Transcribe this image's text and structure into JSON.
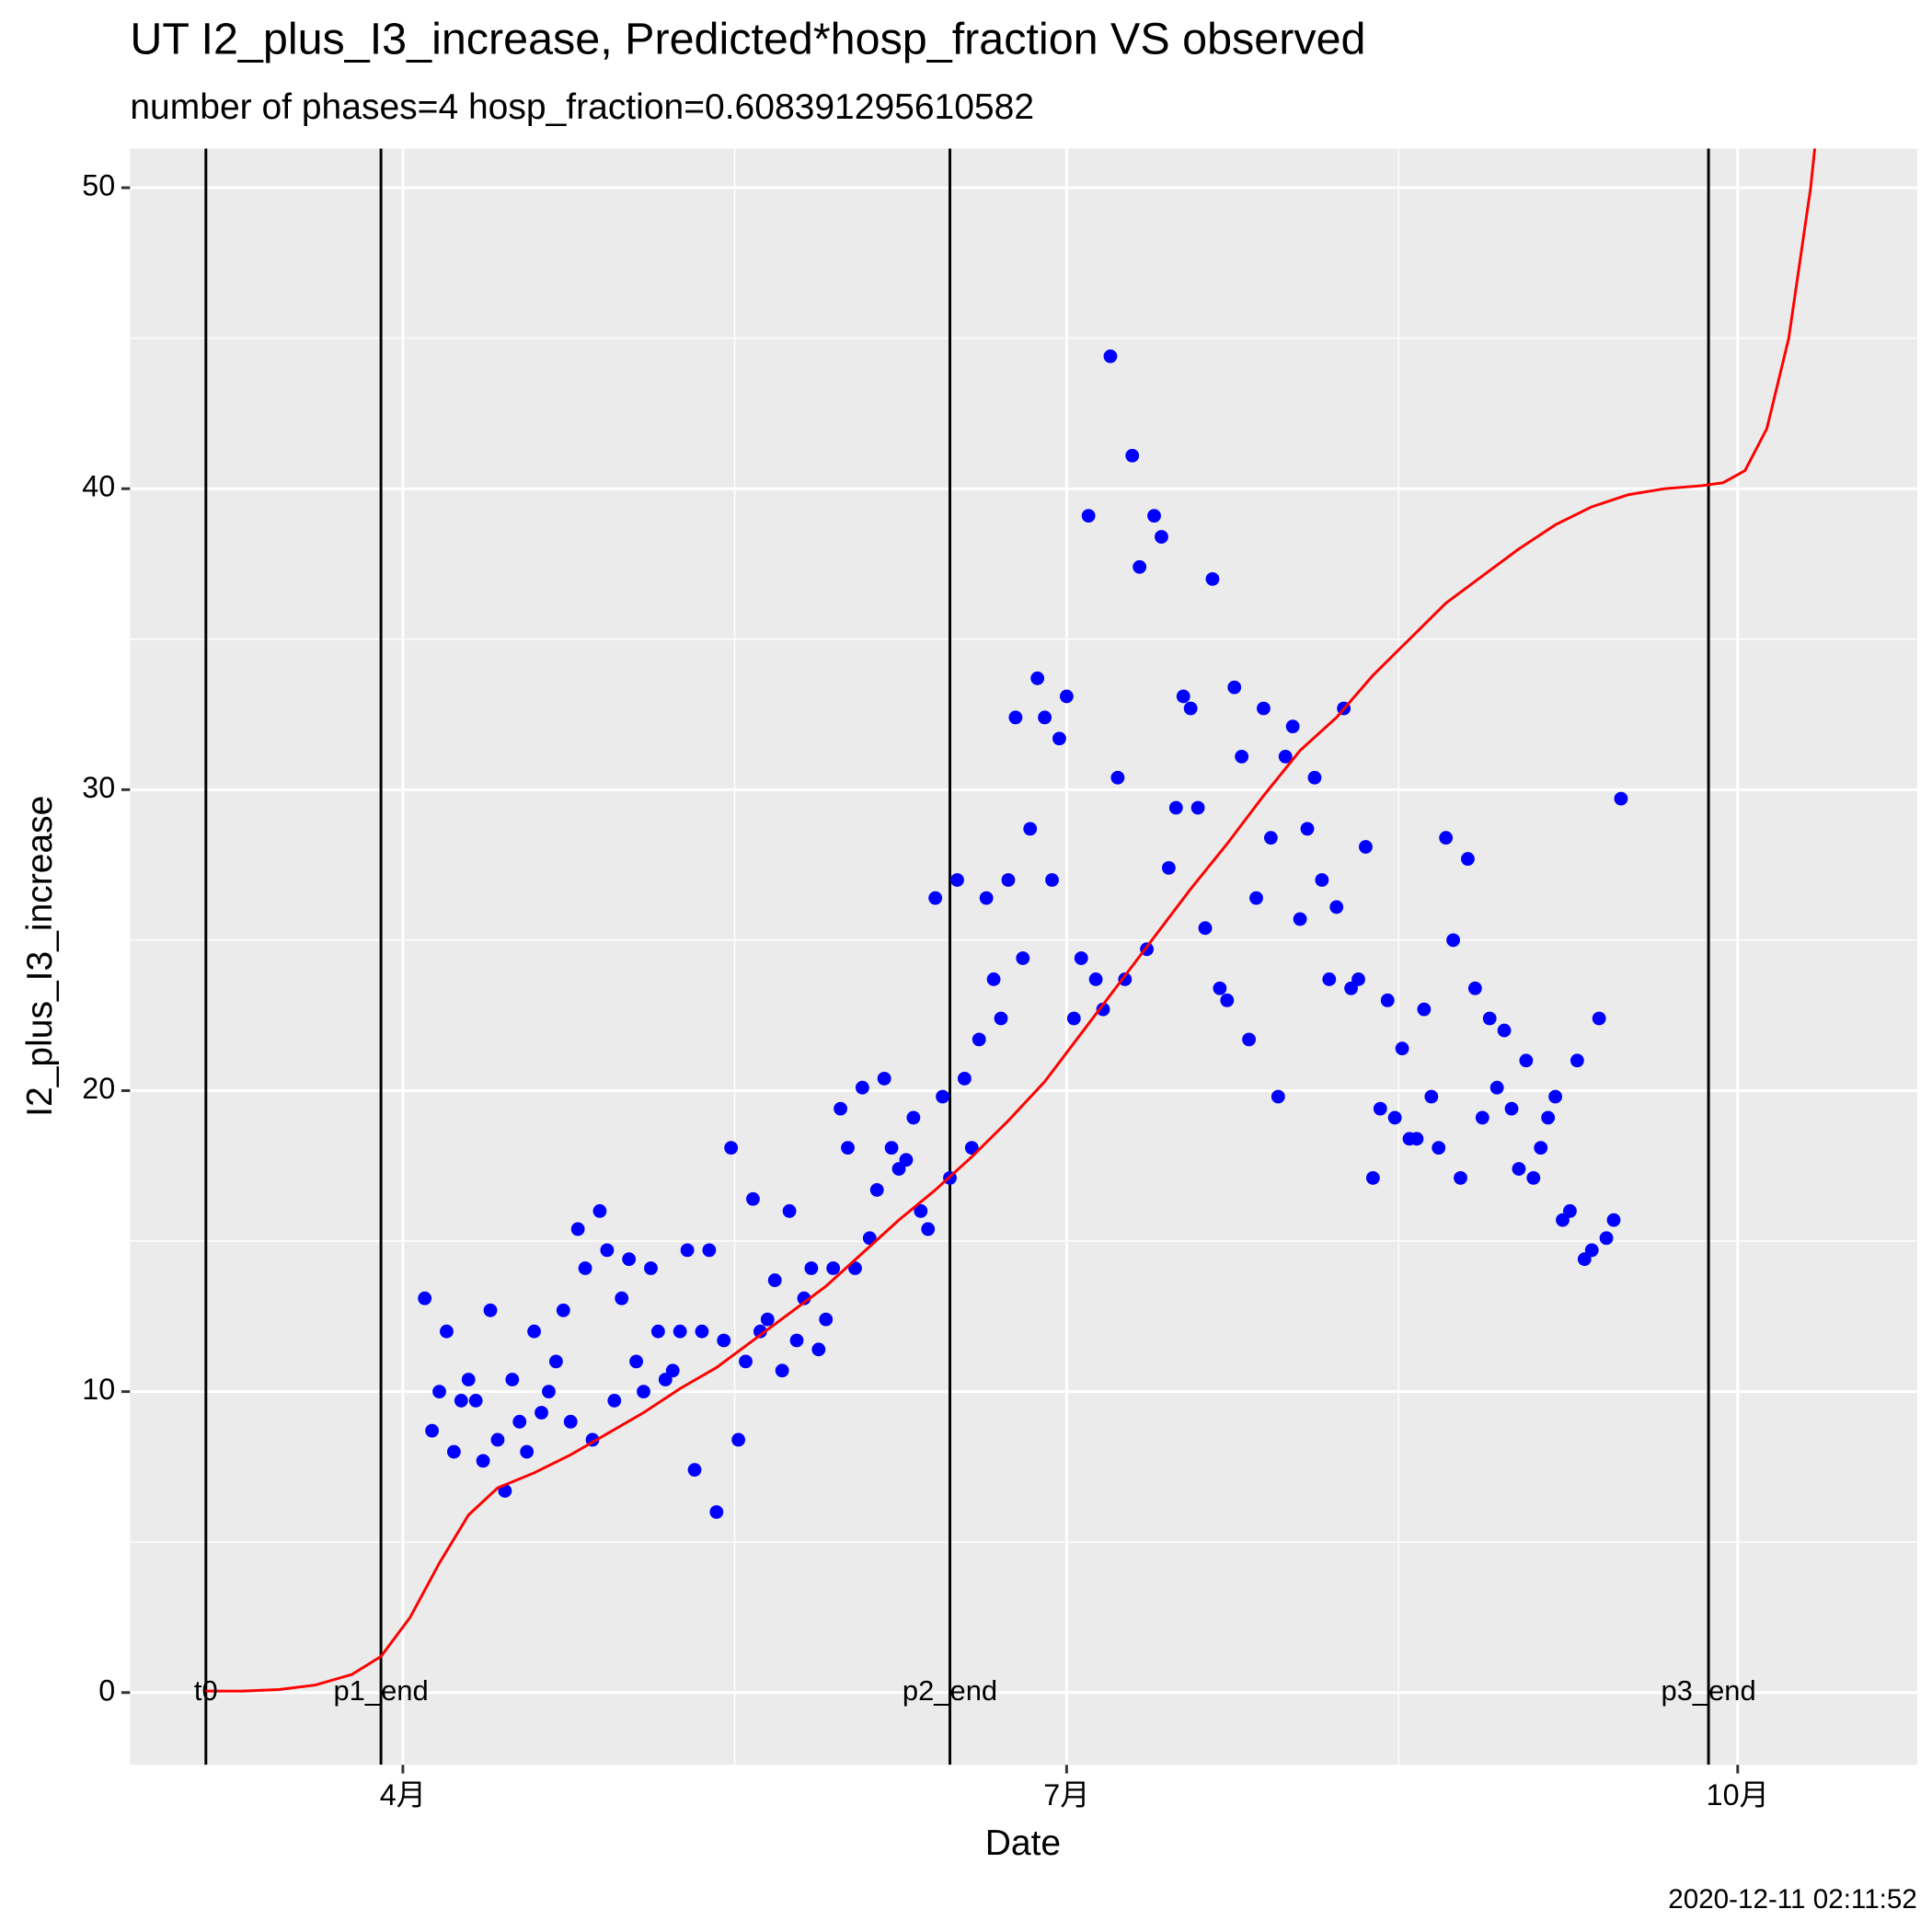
{
  "chart_data": {
    "type": "scatter",
    "title": "UT I2_plus_I3_increase, Predicted*hosp_fraction VS observed",
    "subtitle": "number of phases=4   hosp_fraction=0.608391295610582",
    "x_label": "Date",
    "y_label": "I2_plus_I3_increase",
    "caption": "2020-12-11 02:11:52",
    "grid": true,
    "xlim": [
      54.6,
      299.6
    ],
    "ylim": [
      -2.4,
      51.3
    ],
    "xticks": [
      {
        "value": 92,
        "label": "4月"
      },
      {
        "value": 183,
        "label": "7月"
      },
      {
        "value": 275,
        "label": "10月"
      }
    ],
    "yticks": [
      0,
      10,
      20,
      30,
      40,
      50
    ],
    "vlines": [
      {
        "x": 65,
        "label": "t0"
      },
      {
        "x": 89,
        "label": "p1_end"
      },
      {
        "x": 167,
        "label": "p2_end"
      },
      {
        "x": 271,
        "label": "p3_end"
      }
    ],
    "series": [
      {
        "type": "scatter",
        "color": "#0000ff",
        "x": [
          95,
          96,
          97,
          98,
          99,
          100,
          101,
          102,
          103,
          104,
          105,
          106,
          107,
          108,
          109,
          110,
          111,
          112,
          113,
          114,
          115,
          116,
          117,
          118,
          119,
          120,
          121,
          122,
          123,
          124,
          125,
          126,
          127,
          128,
          129,
          130,
          131,
          132,
          133,
          134,
          135,
          136,
          137,
          138,
          139,
          140,
          141,
          142,
          143,
          144,
          145,
          146,
          147,
          148,
          149,
          150,
          151,
          152,
          153,
          154,
          155,
          156,
          157,
          158,
          159,
          160,
          161,
          162,
          163,
          164,
          165,
          166,
          167,
          168,
          169,
          170,
          171,
          172,
          173,
          174,
          175,
          176,
          177,
          178,
          179,
          180,
          181,
          182,
          183,
          184,
          185,
          186,
          187,
          188,
          189,
          190,
          191,
          192,
          193,
          194,
          195,
          196,
          197,
          198,
          199,
          200,
          201,
          202,
          203,
          204,
          205,
          206,
          207,
          208,
          209,
          210,
          211,
          212,
          213,
          214,
          215,
          216,
          217,
          218,
          219,
          220,
          221,
          222,
          223,
          224,
          225,
          226,
          227,
          228,
          229,
          230,
          231,
          232,
          233,
          234,
          235,
          236,
          237,
          238,
          239,
          240,
          241,
          242,
          243,
          244,
          245,
          246,
          247,
          248,
          249,
          250,
          251,
          252,
          253,
          254,
          255,
          256,
          257,
          258,
          259
        ],
        "values": [
          13.1,
          8.7,
          10.0,
          12.0,
          8.0,
          9.7,
          10.4,
          9.7,
          7.7,
          12.7,
          8.4,
          6.7,
          10.4,
          9.0,
          8.0,
          12.0,
          9.3,
          10.0,
          11.0,
          12.7,
          9.0,
          15.4,
          14.1,
          8.4,
          16.0,
          14.7,
          9.7,
          13.1,
          14.4,
          11.0,
          10.0,
          14.1,
          12.0,
          10.4,
          10.7,
          12.0,
          14.7,
          7.4,
          12.0,
          14.7,
          6.0,
          11.7,
          18.1,
          8.4,
          11.0,
          16.4,
          12.0,
          12.4,
          13.7,
          10.7,
          16.0,
          11.7,
          13.1,
          14.1,
          11.4,
          12.4,
          14.1,
          19.4,
          18.1,
          14.1,
          20.1,
          15.1,
          16.7,
          20.4,
          18.1,
          17.4,
          17.7,
          19.1,
          16.0,
          15.4,
          26.4,
          19.8,
          17.1,
          27.0,
          20.4,
          18.1,
          21.7,
          26.4,
          23.7,
          22.4,
          27.0,
          32.4,
          24.4,
          28.7,
          33.7,
          32.4,
          27.0,
          31.7,
          33.1,
          22.4,
          24.4,
          39.1,
          23.7,
          22.7,
          44.4,
          30.4,
          23.7,
          41.1,
          37.4,
          24.7,
          39.1,
          38.4,
          27.4,
          29.4,
          33.1,
          32.7,
          29.4,
          25.4,
          37.0,
          23.4,
          23.0,
          33.4,
          31.1,
          21.7,
          26.4,
          32.7,
          28.4,
          19.8,
          31.1,
          32.1,
          25.7,
          28.7,
          30.4,
          27.0,
          23.7,
          26.1,
          32.7,
          23.4,
          23.7,
          28.1,
          17.1,
          19.4,
          23.0,
          19.1,
          21.4,
          18.4,
          18.4,
          22.7,
          19.8,
          18.1,
          28.4,
          25.0,
          17.1,
          27.7,
          23.4,
          19.1,
          22.4,
          20.1,
          22.0,
          19.4,
          17.4,
          21.0,
          17.1,
          18.1,
          19.1,
          19.8,
          15.7,
          16.0,
          21.0,
          14.4,
          14.7,
          22.4,
          15.1,
          15.7,
          29.7
        ]
      },
      {
        "type": "line",
        "color": "#ff0000",
        "x": [
          65,
          70,
          75,
          80,
          85,
          89,
          93,
          97,
          101,
          105,
          110,
          115,
          120,
          125,
          130,
          135,
          140,
          145,
          150,
          155,
          160,
          165,
          170,
          175,
          180,
          185,
          190,
          195,
          200,
          205,
          210,
          215,
          220,
          225,
          230,
          235,
          240,
          245,
          250,
          255,
          260,
          265,
          270,
          273,
          276,
          279,
          282,
          285,
          286
        ],
        "values": [
          0.05,
          0.05,
          0.1,
          0.25,
          0.6,
          1.2,
          2.5,
          4.3,
          5.9,
          6.8,
          7.3,
          7.9,
          8.6,
          9.3,
          10.1,
          10.8,
          11.7,
          12.6,
          13.5,
          14.6,
          15.7,
          16.7,
          17.8,
          19.0,
          20.3,
          21.9,
          23.5,
          25.1,
          26.7,
          28.2,
          29.8,
          31.3,
          32.4,
          33.8,
          35.0,
          36.2,
          37.1,
          38.0,
          38.8,
          39.4,
          39.8,
          40.0,
          40.1,
          40.2,
          40.6,
          42.0,
          45.0,
          50.0,
          52.3
        ]
      }
    ]
  }
}
